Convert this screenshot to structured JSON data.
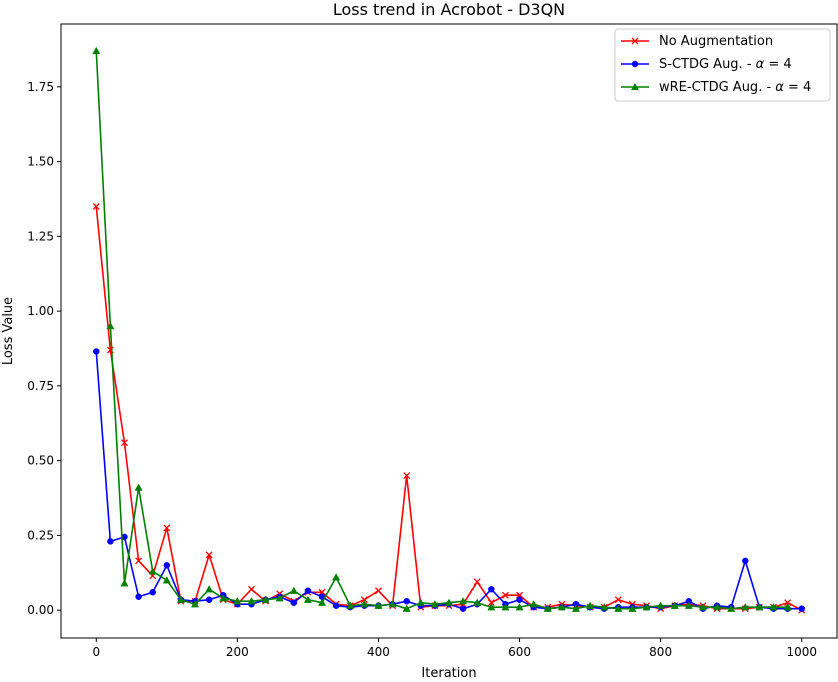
{
  "chart_data": {
    "type": "line",
    "title": "Loss trend in Acrobot - D3QN",
    "xlabel": "Iteration",
    "ylabel": "Loss Value",
    "xlim": [
      -50,
      1050
    ],
    "ylim": [
      -0.093,
      1.96
    ],
    "xticks": [
      0,
      200,
      400,
      600,
      800,
      1000
    ],
    "yticks": [
      0.0,
      0.25,
      0.5,
      0.75,
      1.0,
      1.25,
      1.5,
      1.75
    ],
    "grid": false,
    "legend_position": "top-right",
    "series": [
      {
        "name": "No Augmentation",
        "name_prefix": "No Augmentation",
        "name_suffix": "",
        "color": "#ff0000",
        "marker": "x",
        "x": [
          0,
          20,
          40,
          60,
          80,
          100,
          120,
          140,
          160,
          180,
          200,
          220,
          240,
          260,
          280,
          300,
          320,
          340,
          360,
          380,
          400,
          420,
          440,
          460,
          480,
          500,
          520,
          540,
          560,
          580,
          600,
          620,
          640,
          660,
          680,
          700,
          720,
          740,
          760,
          780,
          800,
          820,
          840,
          860,
          880,
          900,
          920,
          940,
          960,
          980,
          1000
        ],
        "values": [
          1.35,
          0.87,
          0.56,
          0.165,
          0.115,
          0.275,
          0.03,
          0.03,
          0.185,
          0.035,
          0.02,
          0.07,
          0.03,
          0.055,
          0.03,
          0.06,
          0.06,
          0.02,
          0.015,
          0.035,
          0.065,
          0.015,
          0.45,
          0.01,
          0.015,
          0.015,
          0.02,
          0.095,
          0.025,
          0.05,
          0.05,
          0.01,
          0.01,
          0.02,
          0.015,
          0.01,
          0.01,
          0.035,
          0.02,
          0.015,
          0.005,
          0.015,
          0.02,
          0.015,
          0.005,
          0.005,
          0.005,
          0.01,
          0.01,
          0.025,
          0.0
        ]
      },
      {
        "name": "S-CTDG Aug. - α = 4",
        "name_prefix": "S-CTDG Aug. - ",
        "name_suffix": " = 4",
        "color": "#0000ff",
        "marker": "o",
        "x": [
          0,
          20,
          40,
          60,
          80,
          100,
          120,
          140,
          160,
          180,
          200,
          220,
          240,
          260,
          280,
          300,
          320,
          340,
          360,
          380,
          400,
          420,
          440,
          460,
          480,
          500,
          520,
          540,
          560,
          580,
          600,
          620,
          640,
          660,
          680,
          700,
          720,
          740,
          760,
          780,
          800,
          820,
          840,
          860,
          880,
          900,
          920,
          940,
          960,
          980,
          1000
        ],
        "values": [
          0.865,
          0.23,
          0.245,
          0.045,
          0.06,
          0.15,
          0.035,
          0.03,
          0.035,
          0.05,
          0.02,
          0.02,
          0.035,
          0.045,
          0.025,
          0.065,
          0.045,
          0.015,
          0.01,
          0.015,
          0.015,
          0.02,
          0.03,
          0.015,
          0.015,
          0.02,
          0.005,
          0.02,
          0.07,
          0.02,
          0.035,
          0.01,
          0.005,
          0.01,
          0.02,
          0.01,
          0.005,
          0.01,
          0.01,
          0.01,
          0.01,
          0.015,
          0.03,
          0.005,
          0.015,
          0.01,
          0.165,
          0.01,
          0.005,
          0.005,
          0.005
        ]
      },
      {
        "name": "wRE-CTDG Aug. - α = 4",
        "name_prefix": "wRE-CTDG Aug. - ",
        "name_suffix": " = 4",
        "color": "#008000",
        "marker": "^",
        "x": [
          0,
          20,
          40,
          60,
          80,
          100,
          120,
          140,
          160,
          180,
          200,
          220,
          240,
          260,
          280,
          300,
          320,
          340,
          360,
          380,
          400,
          420,
          440,
          460,
          480,
          500,
          520,
          540,
          560,
          580,
          600,
          620,
          640,
          660,
          680,
          700,
          720,
          740,
          760,
          780,
          800,
          820,
          840,
          860,
          880,
          900,
          920,
          940,
          960,
          980
        ],
        "values": [
          1.87,
          0.95,
          0.09,
          0.41,
          0.13,
          0.1,
          0.035,
          0.02,
          0.07,
          0.04,
          0.03,
          0.03,
          0.035,
          0.04,
          0.065,
          0.035,
          0.025,
          0.11,
          0.015,
          0.02,
          0.015,
          0.02,
          0.005,
          0.025,
          0.02,
          0.025,
          0.03,
          0.025,
          0.01,
          0.01,
          0.01,
          0.02,
          0.005,
          0.01,
          0.005,
          0.015,
          0.01,
          0.005,
          0.005,
          0.01,
          0.015,
          0.015,
          0.015,
          0.01,
          0.01,
          0.005,
          0.01,
          0.01,
          0.01,
          0.01
        ]
      }
    ]
  }
}
